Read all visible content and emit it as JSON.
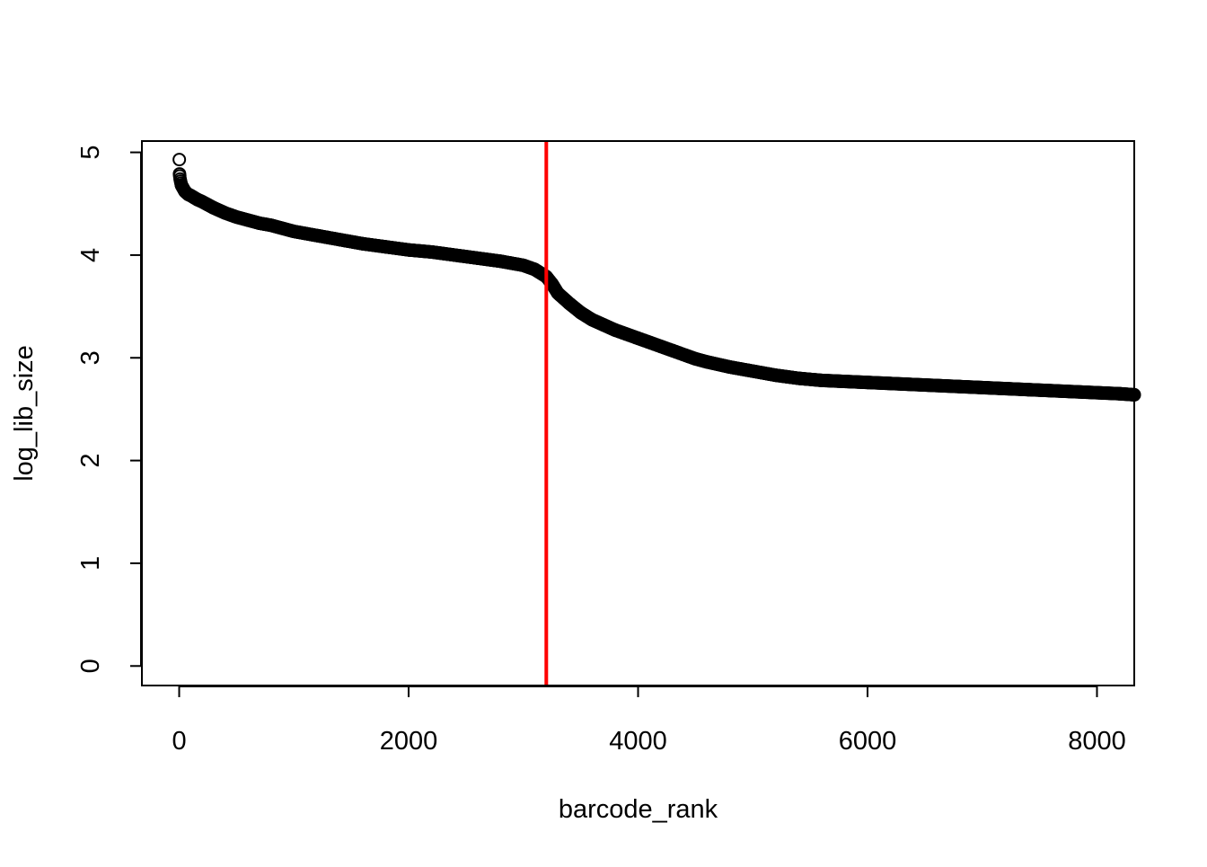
{
  "chart_data": {
    "type": "scatter",
    "title": "",
    "xlabel": "barcode_rank",
    "ylabel": "log_lib_size",
    "xlim": [
      -325,
      8325
    ],
    "ylim": [
      -0.19,
      5.11
    ],
    "x_ticks": [
      0,
      2000,
      4000,
      6000,
      8000
    ],
    "x_tick_labels": [
      "0",
      "2000",
      "4000",
      "6000",
      "8000"
    ],
    "y_ticks": [
      0,
      1,
      2,
      3,
      4,
      5
    ],
    "y_tick_labels": [
      "0",
      "1",
      "2",
      "3",
      "4",
      "5"
    ],
    "grid": false,
    "legend": "none",
    "marker": "open-circle",
    "point_color": "#000000",
    "threshold_line": {
      "orientation": "vertical",
      "x": 3200,
      "color": "#ff0000"
    },
    "series": [
      {
        "points": [
          [
            1,
            4.93
          ],
          [
            3,
            4.79
          ],
          [
            5,
            4.77
          ],
          [
            8,
            4.74
          ],
          [
            12,
            4.72
          ],
          [
            16,
            4.7
          ],
          [
            20,
            4.68
          ],
          [
            30,
            4.66
          ],
          [
            40,
            4.64
          ],
          [
            50,
            4.62
          ],
          [
            60,
            4.61
          ],
          [
            80,
            4.59
          ],
          [
            100,
            4.58
          ],
          [
            130,
            4.56
          ],
          [
            160,
            4.54
          ],
          [
            200,
            4.52
          ],
          [
            250,
            4.49
          ],
          [
            300,
            4.46
          ],
          [
            400,
            4.41
          ],
          [
            500,
            4.37
          ],
          [
            600,
            4.34
          ],
          [
            700,
            4.31
          ],
          [
            800,
            4.29
          ],
          [
            900,
            4.26
          ],
          [
            1000,
            4.23
          ],
          [
            1200,
            4.19
          ],
          [
            1400,
            4.15
          ],
          [
            1600,
            4.11
          ],
          [
            1800,
            4.08
          ],
          [
            2000,
            4.05
          ],
          [
            2200,
            4.03
          ],
          [
            2400,
            4.0
          ],
          [
            2600,
            3.97
          ],
          [
            2800,
            3.94
          ],
          [
            3000,
            3.9
          ],
          [
            3100,
            3.86
          ],
          [
            3200,
            3.79
          ],
          [
            3250,
            3.72
          ],
          [
            3300,
            3.63
          ],
          [
            3400,
            3.53
          ],
          [
            3500,
            3.44
          ],
          [
            3600,
            3.37
          ],
          [
            3700,
            3.32
          ],
          [
            3800,
            3.27
          ],
          [
            3900,
            3.23
          ],
          [
            4000,
            3.19
          ],
          [
            4100,
            3.15
          ],
          [
            4200,
            3.11
          ],
          [
            4300,
            3.07
          ],
          [
            4400,
            3.03
          ],
          [
            4500,
            2.99
          ],
          [
            4600,
            2.96
          ],
          [
            4800,
            2.91
          ],
          [
            5000,
            2.87
          ],
          [
            5200,
            2.83
          ],
          [
            5400,
            2.8
          ],
          [
            5600,
            2.78
          ],
          [
            5800,
            2.77
          ],
          [
            6000,
            2.76
          ],
          [
            6200,
            2.75
          ],
          [
            6400,
            2.74
          ],
          [
            6600,
            2.73
          ],
          [
            6800,
            2.72
          ],
          [
            7000,
            2.71
          ],
          [
            7200,
            2.7
          ],
          [
            7400,
            2.69
          ],
          [
            7600,
            2.68
          ],
          [
            7800,
            2.67
          ],
          [
            8000,
            2.66
          ],
          [
            8200,
            2.65
          ],
          [
            8325,
            2.64
          ]
        ]
      }
    ]
  }
}
